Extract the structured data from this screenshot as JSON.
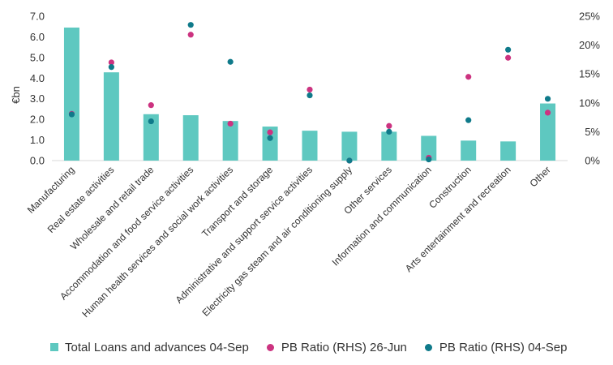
{
  "chart_data": {
    "type": "bar",
    "categories": [
      "Manufacturing",
      "Real estate activities",
      "Wholesale and retail trade",
      "Accommodation and food service activities",
      "Human health services and social work activities",
      "Transport and storage",
      "Administrative and support service activities",
      "Electricity gas steam and air conditioning supply",
      "Other services",
      "Information and communication",
      "Construction",
      "Arts entertainment and recreation",
      "Other"
    ],
    "ylabel": "€bn",
    "ylim": [
      0,
      7
    ],
    "y_ticks": [
      "0.0",
      "1.0",
      "2.0",
      "3.0",
      "4.0",
      "5.0",
      "6.0",
      "7.0"
    ],
    "y2lim": [
      0,
      25
    ],
    "y2_ticks": [
      "0%",
      "5%",
      "10%",
      "15%",
      "20%",
      "25%"
    ],
    "series": [
      {
        "name": "Total Loans and advances 04-Sep",
        "type": "bar",
        "axis": "left",
        "color": "#5ec8c0",
        "values": [
          6.45,
          4.28,
          2.25,
          2.2,
          1.92,
          1.65,
          1.45,
          1.4,
          1.4,
          1.2,
          0.97,
          0.93,
          2.77
        ]
      },
      {
        "name": "PB Ratio (RHS) 26-Jun",
        "type": "scatter",
        "axis": "right",
        "color": "#cc3380",
        "values": [
          8.1,
          17.0,
          9.6,
          21.8,
          6.4,
          4.9,
          12.3,
          0.0,
          6.0,
          0.5,
          14.5,
          17.8,
          8.3
        ]
      },
      {
        "name": "PB Ratio (RHS) 04-Sep",
        "type": "scatter",
        "axis": "right",
        "color": "#0f7a8a",
        "values": [
          8.0,
          16.2,
          6.8,
          23.5,
          17.1,
          3.9,
          11.3,
          0.0,
          5.0,
          0.2,
          7.0,
          19.2,
          10.7
        ]
      }
    ],
    "grid": false,
    "legend_position": "bottom"
  }
}
